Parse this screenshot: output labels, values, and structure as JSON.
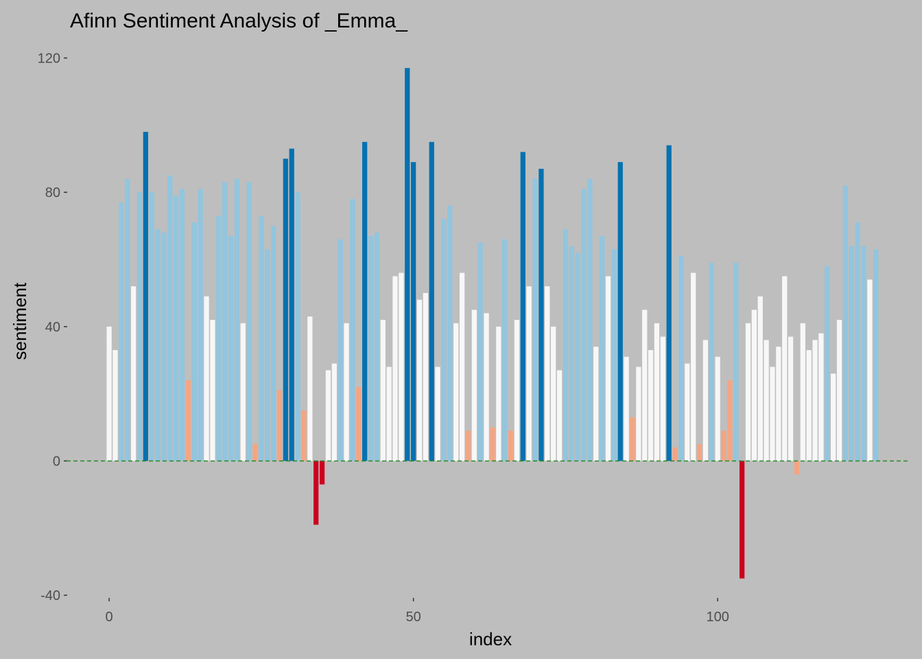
{
  "chart_data": {
    "type": "bar",
    "title": "Afinn Sentiment Analysis of _Emma_",
    "xlabel": "index",
    "ylabel": "sentiment",
    "xlim": [
      -7,
      132
    ],
    "ylim": [
      -41,
      125
    ],
    "x_ticks": [
      0,
      50,
      100
    ],
    "y_ticks": [
      -40,
      0,
      40,
      80,
      120
    ],
    "x_tick_labels": [
      "0",
      "50",
      "100"
    ],
    "y_tick_labels": [
      "-40",
      "0",
      "40",
      "80",
      "120"
    ],
    "reference_line": {
      "y": 0,
      "style": "dashed",
      "color": "#228b22"
    },
    "grid": false,
    "legend": "none",
    "colors": {
      "background": "#bebebe",
      "strong_positive": "#0571b0",
      "positive": "#92c5de",
      "neutral": "#f7f7f7",
      "slight_negative": "#f4a582",
      "strong_negative": "#ca0020"
    },
    "x": [
      0,
      1,
      2,
      3,
      4,
      5,
      6,
      7,
      8,
      9,
      10,
      11,
      12,
      13,
      14,
      15,
      16,
      17,
      18,
      19,
      20,
      21,
      22,
      23,
      24,
      25,
      26,
      27,
      28,
      29,
      30,
      31,
      32,
      33,
      34,
      35,
      36,
      37,
      38,
      39,
      40,
      41,
      42,
      43,
      44,
      45,
      46,
      47,
      48,
      49,
      50,
      51,
      52,
      53,
      54,
      55,
      56,
      57,
      58,
      59,
      60,
      61,
      62,
      63,
      64,
      65,
      66,
      67,
      68,
      69,
      70,
      71,
      72,
      73,
      74,
      75,
      76,
      77,
      78,
      79,
      80,
      81,
      82,
      83,
      84,
      85,
      86,
      87,
      88,
      89,
      90,
      91,
      92,
      93,
      94,
      95,
      96,
      97,
      98,
      99,
      100,
      101,
      102,
      103,
      104,
      105,
      106,
      107,
      108,
      109,
      110,
      111,
      112,
      113,
      114,
      115,
      116,
      117,
      118,
      119,
      120,
      121,
      122,
      123,
      124,
      125,
      126
    ],
    "values": [
      40,
      33,
      77,
      84,
      52,
      80,
      98,
      80,
      69,
      68,
      85,
      79,
      81,
      24,
      71,
      81,
      49,
      42,
      73,
      83,
      67,
      84,
      41,
      83,
      5,
      73,
      63,
      70,
      21,
      90,
      93,
      80,
      15,
      43,
      -19,
      -7,
      27,
      29,
      66,
      41,
      78,
      22,
      95,
      67,
      68,
      42,
      28,
      55,
      56,
      117,
      89,
      48,
      50,
      95,
      28,
      72,
      76,
      41,
      56,
      9,
      45,
      65,
      44,
      10,
      40,
      66,
      9,
      42,
      92,
      52,
      84,
      87,
      52,
      40,
      27,
      69,
      64,
      62,
      81,
      84,
      34,
      67,
      55,
      63,
      89,
      31,
      13,
      28,
      45,
      33,
      41,
      37,
      94,
      4,
      61,
      29,
      56,
      5,
      36,
      59,
      31,
      9,
      24,
      59,
      -35,
      41,
      45,
      49,
      36,
      28,
      34,
      55,
      37,
      -4,
      41,
      33,
      36,
      38,
      58,
      26,
      42,
      82,
      64,
      71,
      64,
      54,
      63
    ],
    "categories": [
      "neutral",
      "neutral",
      "positive",
      "positive",
      "neutral",
      "positive",
      "strong_positive",
      "positive",
      "positive",
      "positive",
      "positive",
      "positive",
      "positive",
      "slight_negative",
      "positive",
      "positive",
      "neutral",
      "neutral",
      "positive",
      "positive",
      "positive",
      "positive",
      "neutral",
      "positive",
      "slight_negative",
      "positive",
      "positive",
      "positive",
      "slight_negative",
      "strong_positive",
      "strong_positive",
      "positive",
      "slight_negative",
      "neutral",
      "strong_negative",
      "strong_negative",
      "neutral",
      "neutral",
      "positive",
      "neutral",
      "positive",
      "slight_negative",
      "strong_positive",
      "positive",
      "positive",
      "neutral",
      "neutral",
      "neutral",
      "neutral",
      "strong_positive",
      "strong_positive",
      "neutral",
      "neutral",
      "strong_positive",
      "neutral",
      "positive",
      "positive",
      "neutral",
      "neutral",
      "slight_negative",
      "neutral",
      "positive",
      "neutral",
      "slight_negative",
      "neutral",
      "positive",
      "slight_negative",
      "neutral",
      "strong_positive",
      "neutral",
      "positive",
      "strong_positive",
      "neutral",
      "neutral",
      "neutral",
      "positive",
      "positive",
      "positive",
      "positive",
      "positive",
      "neutral",
      "positive",
      "neutral",
      "positive",
      "strong_positive",
      "neutral",
      "slight_negative",
      "neutral",
      "neutral",
      "neutral",
      "neutral",
      "neutral",
      "strong_positive",
      "slight_negative",
      "positive",
      "neutral",
      "neutral",
      "slight_negative",
      "neutral",
      "positive",
      "neutral",
      "slight_negative",
      "slight_negative",
      "positive",
      "strong_negative",
      "neutral",
      "neutral",
      "neutral",
      "neutral",
      "neutral",
      "neutral",
      "neutral",
      "neutral",
      "slight_negative",
      "neutral",
      "neutral",
      "neutral",
      "neutral",
      "positive",
      "neutral",
      "neutral",
      "positive",
      "positive",
      "positive",
      "positive",
      "neutral",
      "positive"
    ]
  }
}
